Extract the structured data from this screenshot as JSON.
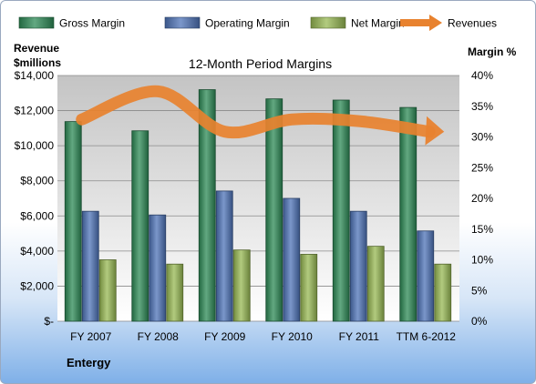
{
  "chart_data": {
    "type": "bar",
    "title": "12-Month Period Margins",
    "company_label": "Entergy",
    "categories": [
      "FY 2007",
      "FY 2008",
      "FY 2009",
      "FY 2010",
      "FY 2011",
      "TTM 6-2012"
    ],
    "left_axis": {
      "title_line1": "Revenue",
      "title_line2": "$millions",
      "ylim": [
        0,
        14000
      ],
      "ticks": [
        0,
        2000,
        4000,
        6000,
        8000,
        10000,
        12000,
        14000
      ],
      "tick_labels": [
        "$-",
        "$2,000",
        "$4,000",
        "$6,000",
        "$8,000",
        "$10,000",
        "$12,000",
        "$14,000"
      ]
    },
    "right_axis": {
      "title": "Margin %",
      "ylim": [
        0,
        40
      ],
      "ticks": [
        0,
        5,
        10,
        15,
        20,
        25,
        30,
        35,
        40
      ],
      "tick_labels": [
        "0%",
        "5%",
        "10%",
        "15%",
        "20%",
        "25%",
        "30%",
        "35%",
        "40%"
      ]
    },
    "series": [
      {
        "name": "Gross Margin",
        "axis": "right",
        "color": "#2e8b57",
        "values": [
          32.5,
          31,
          37.7,
          36.2,
          36,
          34.8
        ]
      },
      {
        "name": "Operating Margin",
        "axis": "right",
        "color": "#4f74b8",
        "values": [
          17.9,
          17.3,
          21.2,
          20,
          17.9,
          14.7
        ]
      },
      {
        "name": "Net Margin",
        "axis": "right",
        "color": "#98b954",
        "values": [
          10,
          9.3,
          11.6,
          10.9,
          12.2,
          9.3
        ]
      },
      {
        "name": "Revenues",
        "axis": "left",
        "type": "line-arrow",
        "color": "#e8822f",
        "values": [
          11500,
          13100,
          10800,
          11500,
          11400,
          10800
        ]
      }
    ],
    "legend_position": "top",
    "grid": true
  }
}
